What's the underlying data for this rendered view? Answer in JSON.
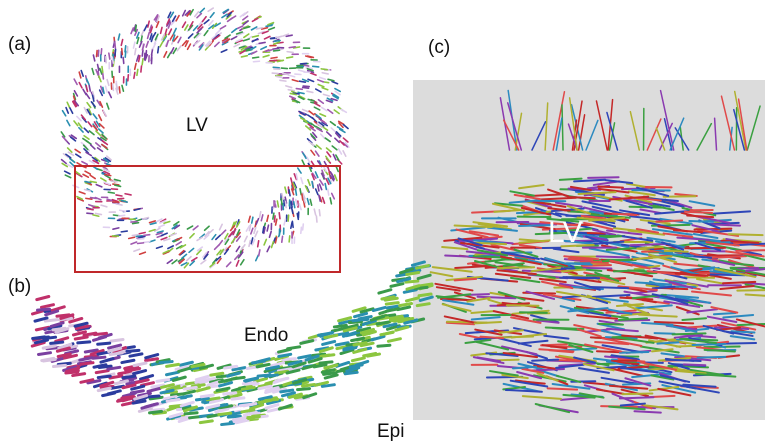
{
  "panels": [
    {
      "label": "(a)",
      "annotations": [
        "LV"
      ]
    },
    {
      "label": "(b)",
      "annotations": [
        "Endo",
        "Epi"
      ]
    },
    {
      "label": "(c)",
      "annotations": [
        "LV"
      ]
    }
  ]
}
